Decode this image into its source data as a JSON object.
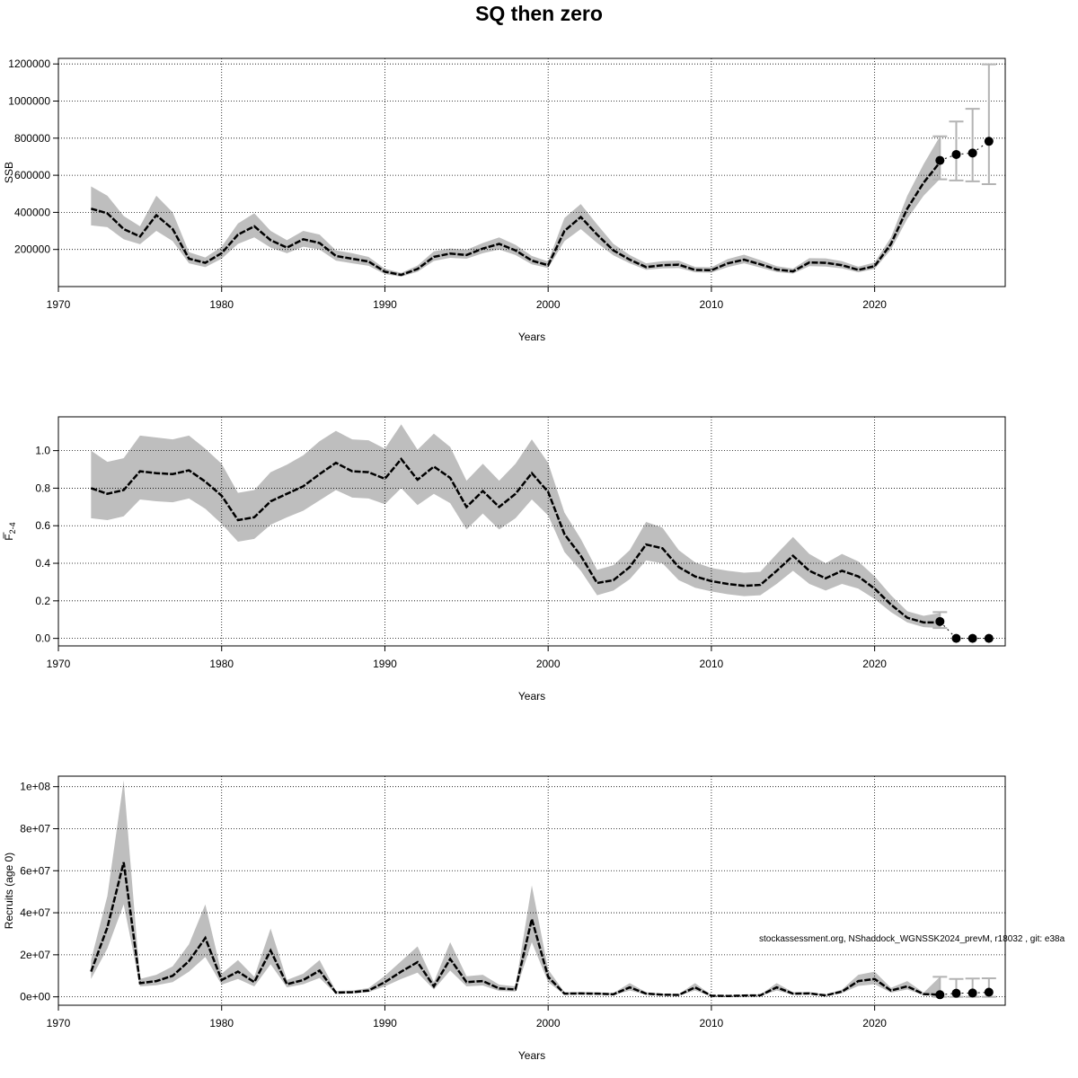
{
  "title": "SQ then zero",
  "footnote": "stockassessment.org, NShaddock_WGNSSK2024_prevM, r18032 , git: e38a",
  "colors": {
    "band": "#bebebe",
    "line": "#000000",
    "grid": "#000000",
    "errorbar": "#b3b3b3"
  },
  "chart_data": [
    {
      "type": "line",
      "id": "ssb",
      "xlabel": "Years",
      "ylabel": "SSB",
      "xlim": [
        1970,
        2028
      ],
      "ylim": [
        0,
        1230000
      ],
      "x_ticks": [
        1970,
        1980,
        1990,
        2000,
        2010,
        2020
      ],
      "y_ticks": [
        200000,
        400000,
        600000,
        800000,
        1000000,
        1200000
      ],
      "y_tick_labels": [
        "200000",
        "400000",
        "600000",
        "800000",
        "1000000",
        "1200000"
      ],
      "grid": true,
      "years": [
        1972,
        1973,
        1974,
        1975,
        1976,
        1977,
        1978,
        1979,
        1980,
        1981,
        1982,
        1983,
        1984,
        1985,
        1986,
        1987,
        1988,
        1989,
        1990,
        1991,
        1992,
        1993,
        1994,
        1995,
        1996,
        1997,
        1998,
        1999,
        2000,
        2001,
        2002,
        2003,
        2004,
        2005,
        2006,
        2007,
        2008,
        2009,
        2010,
        2011,
        2012,
        2013,
        2014,
        2015,
        2016,
        2017,
        2018,
        2019,
        2020,
        2021,
        2022,
        2023,
        2024
      ],
      "estimate": [
        420000,
        395000,
        310000,
        270000,
        385000,
        310000,
        150000,
        128000,
        180000,
        280000,
        325000,
        250000,
        210000,
        255000,
        235000,
        165000,
        150000,
        135000,
        80000,
        63000,
        95000,
        160000,
        178000,
        170000,
        205000,
        230000,
        195000,
        140000,
        115000,
        300000,
        375000,
        280000,
        195000,
        145000,
        105000,
        115000,
        118000,
        90000,
        88000,
        125000,
        145000,
        120000,
        92000,
        82000,
        130000,
        128000,
        115000,
        90000,
        110000,
        230000,
        420000,
        560000,
        670000
      ],
      "lower": [
        330000,
        320000,
        255000,
        228000,
        300000,
        245000,
        125000,
        105000,
        150000,
        230000,
        265000,
        210000,
        180000,
        215000,
        200000,
        140000,
        125000,
        112000,
        67000,
        53000,
        80000,
        138000,
        155000,
        150000,
        180000,
        200000,
        170000,
        120000,
        100000,
        245000,
        310000,
        235000,
        168000,
        125000,
        90000,
        98000,
        100000,
        77000,
        75000,
        105000,
        125000,
        102000,
        78000,
        70000,
        110000,
        108000,
        98000,
        77000,
        95000,
        200000,
        365000,
        490000,
        580000
      ],
      "upper": [
        540000,
        490000,
        380000,
        325000,
        490000,
        400000,
        185000,
        157000,
        215000,
        340000,
        395000,
        300000,
        250000,
        300000,
        280000,
        195000,
        180000,
        160000,
        96000,
        74000,
        113000,
        190000,
        205000,
        198000,
        235000,
        265000,
        225000,
        165000,
        135000,
        370000,
        445000,
        335000,
        230000,
        170000,
        125000,
        137000,
        140000,
        106000,
        104000,
        148000,
        172000,
        142000,
        110000,
        97000,
        153000,
        152000,
        137000,
        107000,
        130000,
        265000,
        490000,
        660000,
        810000
      ],
      "forecast": {
        "years": [
          2024,
          2025,
          2026,
          2027
        ],
        "median": [
          680000,
          712000,
          720000,
          783000
        ],
        "lower": [
          578000,
          572000,
          567000,
          552000
        ],
        "upper": [
          810000,
          890000,
          958000,
          1198000
        ]
      }
    },
    {
      "type": "line",
      "id": "fbar",
      "xlabel": "Years",
      "ylabel": "F",
      "ylabel_sub": "2-4",
      "xlim": [
        1970,
        2028
      ],
      "ylim": [
        -0.04,
        1.18
      ],
      "x_ticks": [
        1970,
        1980,
        1990,
        2000,
        2010,
        2020
      ],
      "y_ticks": [
        0,
        0.2,
        0.4,
        0.6,
        0.8,
        1.0
      ],
      "y_tick_labels": [
        "0.0",
        "0.2",
        "0.4",
        "0.6",
        "0.8",
        "1.0"
      ],
      "grid": true,
      "years": [
        1972,
        1973,
        1974,
        1975,
        1976,
        1977,
        1978,
        1979,
        1980,
        1981,
        1982,
        1983,
        1984,
        1985,
        1986,
        1987,
        1988,
        1989,
        1990,
        1991,
        1992,
        1993,
        1994,
        1995,
        1996,
        1997,
        1998,
        1999,
        2000,
        2001,
        2002,
        2003,
        2004,
        2005,
        2006,
        2007,
        2008,
        2009,
        2010,
        2011,
        2012,
        2013,
        2014,
        2015,
        2016,
        2017,
        2018,
        2019,
        2020,
        2021,
        2022,
        2023,
        2024
      ],
      "estimate": [
        0.8,
        0.77,
        0.79,
        0.89,
        0.88,
        0.875,
        0.895,
        0.835,
        0.76,
        0.63,
        0.645,
        0.73,
        0.77,
        0.81,
        0.875,
        0.935,
        0.89,
        0.885,
        0.85,
        0.955,
        0.845,
        0.915,
        0.855,
        0.7,
        0.785,
        0.7,
        0.77,
        0.88,
        0.78,
        0.555,
        0.44,
        0.295,
        0.31,
        0.38,
        0.5,
        0.48,
        0.38,
        0.33,
        0.305,
        0.29,
        0.28,
        0.285,
        0.36,
        0.44,
        0.36,
        0.32,
        0.36,
        0.33,
        0.265,
        0.18,
        0.11,
        0.085,
        0.085
      ],
      "lower": [
        0.64,
        0.63,
        0.65,
        0.74,
        0.73,
        0.725,
        0.745,
        0.69,
        0.61,
        0.515,
        0.53,
        0.605,
        0.645,
        0.68,
        0.735,
        0.79,
        0.75,
        0.745,
        0.715,
        0.8,
        0.71,
        0.77,
        0.72,
        0.58,
        0.665,
        0.58,
        0.64,
        0.74,
        0.655,
        0.46,
        0.36,
        0.23,
        0.255,
        0.315,
        0.415,
        0.4,
        0.31,
        0.27,
        0.25,
        0.235,
        0.225,
        0.23,
        0.29,
        0.36,
        0.29,
        0.255,
        0.29,
        0.265,
        0.21,
        0.14,
        0.085,
        0.06,
        0.055
      ],
      "upper": [
        1.0,
        0.94,
        0.96,
        1.08,
        1.07,
        1.06,
        1.08,
        1.01,
        0.93,
        0.775,
        0.79,
        0.885,
        0.925,
        0.975,
        1.05,
        1.105,
        1.06,
        1.055,
        1.01,
        1.14,
        1.005,
        1.09,
        1.02,
        0.84,
        0.93,
        0.84,
        0.93,
        1.06,
        0.935,
        0.67,
        0.53,
        0.365,
        0.39,
        0.47,
        0.62,
        0.59,
        0.47,
        0.405,
        0.375,
        0.36,
        0.35,
        0.355,
        0.45,
        0.54,
        0.45,
        0.4,
        0.45,
        0.41,
        0.33,
        0.23,
        0.145,
        0.12,
        0.135
      ],
      "forecast": {
        "years": [
          2024,
          2025,
          2026,
          2027
        ],
        "median": [
          0.09,
          0.0,
          0.0,
          0.0
        ],
        "lower": [
          0.055,
          0.0,
          0.0,
          0.0
        ],
        "upper": [
          0.14,
          0.0,
          0.0,
          0.0
        ]
      }
    },
    {
      "type": "line",
      "id": "recruits",
      "xlabel": "Years",
      "ylabel": "Recruits (age 0)",
      "xlim": [
        1970,
        2028
      ],
      "ylim": [
        -4000000,
        105000000
      ],
      "x_ticks": [
        1970,
        1980,
        1990,
        2000,
        2010,
        2020
      ],
      "y_ticks": [
        0,
        20000000,
        40000000,
        60000000,
        80000000,
        100000000
      ],
      "y_tick_labels": [
        "0e+00",
        "2e+07",
        "4e+07",
        "6e+07",
        "8e+07",
        "1e+08"
      ],
      "grid": true,
      "years": [
        1972,
        1973,
        1974,
        1975,
        1976,
        1977,
        1978,
        1979,
        1980,
        1981,
        1982,
        1983,
        1984,
        1985,
        1986,
        1987,
        1988,
        1989,
        1990,
        1991,
        1992,
        1993,
        1994,
        1995,
        1996,
        1997,
        1998,
        1999,
        2000,
        2001,
        2002,
        2003,
        2004,
        2005,
        2006,
        2007,
        2008,
        2009,
        2010,
        2011,
        2012,
        2013,
        2014,
        2015,
        2016,
        2017,
        2018,
        2019,
        2020,
        2021,
        2022,
        2023,
        2024
      ],
      "estimate": [
        12000000,
        33000000,
        64000000,
        6500000,
        7500000,
        10000000,
        17000000,
        28000000,
        8000000,
        12000000,
        7000000,
        22000000,
        6000000,
        8000000,
        12500000,
        2000000,
        2200000,
        3000000,
        7000000,
        12000000,
        16500000,
        5000000,
        18000000,
        7000000,
        7500000,
        4000000,
        3500000,
        37000000,
        9500000,
        1500000,
        1600000,
        1500000,
        1200000,
        4500000,
        1500000,
        1000000,
        900000,
        4500000,
        500000,
        400000,
        600000,
        700000,
        4500000,
        1500000,
        1600000,
        700000,
        2500000,
        7500000,
        8500000,
        3000000,
        5000000,
        1300000,
        1000000
      ],
      "lower": [
        8500000,
        23000000,
        44000000,
        5000000,
        5500000,
        7000000,
        12000000,
        19000000,
        5800000,
        8500000,
        5000000,
        15500000,
        4500000,
        6000000,
        9000000,
        1400000,
        1600000,
        2200000,
        5000000,
        8500000,
        11500000,
        3500000,
        12500000,
        5000000,
        5400000,
        2800000,
        2500000,
        26000000,
        7000000,
        1000000,
        1100000,
        1000000,
        800000,
        3000000,
        1000000,
        650000,
        600000,
        3000000,
        300000,
        250000,
        400000,
        450000,
        3000000,
        1000000,
        1100000,
        450000,
        1700000,
        5200000,
        6000000,
        2000000,
        3500000,
        800000,
        500000
      ],
      "upper": [
        17500000,
        48000000,
        103000000,
        8500000,
        10500000,
        14500000,
        25000000,
        44000000,
        11000000,
        17500000,
        9500000,
        32500000,
        8000000,
        11000000,
        17500000,
        2800000,
        3000000,
        4200000,
        10000000,
        17000000,
        24000000,
        7000000,
        26000000,
        9800000,
        10500000,
        5800000,
        5000000,
        53000000,
        13000000,
        2200000,
        2300000,
        2200000,
        1800000,
        6500000,
        2200000,
        1500000,
        1300000,
        6500000,
        750000,
        600000,
        900000,
        1000000,
        6500000,
        2200000,
        2300000,
        1000000,
        3500000,
        10500000,
        12000000,
        4300000,
        7500000,
        2000000,
        9500000
      ],
      "forecast": {
        "years": [
          2024,
          2025,
          2026,
          2027
        ],
        "median": [
          1000000,
          1700000,
          1800000,
          2200000
        ],
        "lower": [
          0,
          0,
          0,
          0
        ],
        "upper": [
          9500000,
          8500000,
          8700000,
          8800000
        ]
      }
    }
  ]
}
